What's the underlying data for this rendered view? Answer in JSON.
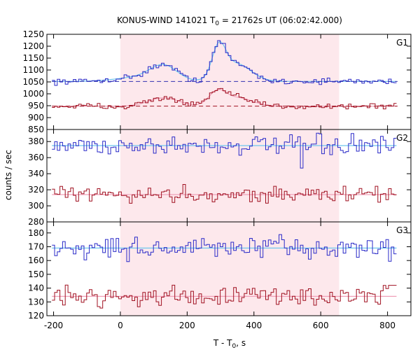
{
  "colors": {
    "blue": "#2a2ac8",
    "blue_fit": "#6ec6ee",
    "red": "#a01020",
    "red_fit": "#f0a0b8",
    "shade": "#fde8ec",
    "background_dash": "#3030b0"
  },
  "chart_data": {
    "type": "line",
    "title_main": "KONUS-WIND 141021 T",
    "title_sub": "0",
    "title_rest": " = 21762s UT (06:02:42.000)",
    "xlabel_main": "T - T",
    "xlabel_sub": "0",
    "xlabel_rest": ", s",
    "ylabel": "counts / sec",
    "xlim": [
      -220,
      870
    ],
    "xticks": [
      -200,
      0,
      200,
      400,
      600,
      800
    ],
    "shaded_interval": [
      0,
      655
    ],
    "panels": [
      {
        "name": "G1",
        "ylim": [
          850,
          1250
        ],
        "yticks": [
          850,
          900,
          950,
          1000,
          1050,
          1100,
          1150,
          1200,
          1250
        ],
        "curves": [
          {
            "name": "G1-high",
            "base": 1052,
            "noise": 6,
            "bumps": [
              {
                "t": 130,
                "a": 60,
                "w": 40
              },
              {
                "t": 295,
                "a": 125,
                "w": 20
              },
              {
                "t": 345,
                "a": 75,
                "w": 45
              },
              {
                "t": 60,
                "a": 18,
                "w": 70
              }
            ],
            "fit_dashed": 1052
          },
          {
            "name": "G1-low",
            "base": 948,
            "noise": 6,
            "bumps": [
              {
                "t": 130,
                "a": 35,
                "w": 45
              },
              {
                "t": 290,
                "a": 55,
                "w": 25
              },
              {
                "t": 350,
                "a": 35,
                "w": 45
              }
            ],
            "fit_dashed": 948
          }
        ]
      },
      {
        "name": "G2",
        "ylim": [
          280,
          395
        ],
        "yticks": [
          280,
          300,
          320,
          340,
          360,
          380
        ],
        "curves": [
          {
            "name": "G2-high",
            "base": 375,
            "noise": 6,
            "bumps": [],
            "fit_dashed": null
          },
          {
            "name": "G2-low",
            "base": 314,
            "noise": 5,
            "bumps": [],
            "fit_dashed": null
          }
        ]
      },
      {
        "name": "G3",
        "ylim": [
          120,
          188
        ],
        "yticks": [
          120,
          130,
          140,
          150,
          160,
          170,
          180
        ],
        "curves": [
          {
            "name": "G3-high",
            "base": 169,
            "noise": 4,
            "bumps": [],
            "fit_dashed": null
          },
          {
            "name": "G3-low",
            "base": 134,
            "noise": 3.5,
            "bumps": [],
            "fit_dashed": null
          }
        ]
      }
    ]
  }
}
